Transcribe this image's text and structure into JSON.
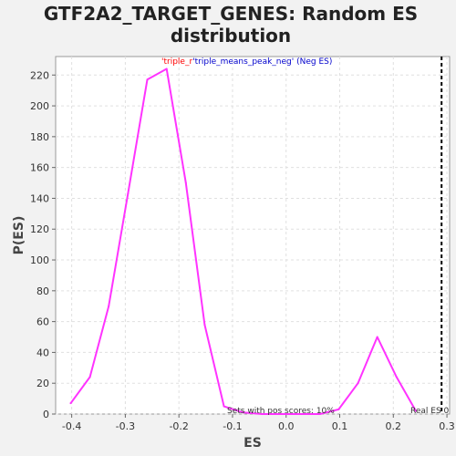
{
  "chart_data": {
    "type": "line",
    "title_line1": "GTF2A2_TARGET_GENES: Random ES",
    "title_line2": "distribution",
    "xlabel": "ES",
    "ylabel": "P(ES)",
    "xlim": [
      -0.43,
      0.305
    ],
    "ylim": [
      0,
      232
    ],
    "x_ticks": [
      -0.4,
      -0.3,
      -0.2,
      -0.1,
      0.0,
      0.1,
      0.2,
      0.3
    ],
    "x_tick_labels": [
      "-0.4",
      "-0.3",
      "-0.2",
      "-0.1",
      "0.0",
      "0.1",
      "0.2",
      "0.3"
    ],
    "y_ticks": [
      0,
      20,
      40,
      60,
      80,
      100,
      120,
      140,
      160,
      180,
      200,
      220
    ],
    "y_tick_labels": [
      "0",
      "20",
      "40",
      "60",
      "80",
      "100",
      "120",
      "140",
      "160",
      "180",
      "200",
      "220"
    ],
    "grid": true,
    "series": [
      {
        "color": "#ff33ff",
        "x": [
          -0.402,
          -0.366,
          -0.331,
          -0.295,
          -0.259,
          -0.223,
          -0.187,
          -0.152,
          -0.116,
          -0.08,
          -0.045,
          -0.009,
          0.027,
          0.063,
          0.098,
          0.134,
          0.17,
          0.206,
          0.242
        ],
        "y": [
          7,
          24,
          70,
          143,
          217,
          224,
          150,
          58,
          5,
          1,
          0,
          0,
          0,
          0,
          3,
          20,
          50,
          24,
          2
        ]
      }
    ],
    "real_es": 0.29,
    "real_es_color": "#000000",
    "annotations": {
      "top_red": "'triple_r",
      "top_blue": "'triple_means_peak_neg' (Neg ES)",
      "top_red_color": "#ff0000",
      "top_blue_color": "#0000cc",
      "bottom_mid": "Sets with pos scores: 10%",
      "bottom_right": "Real ES 0"
    }
  }
}
